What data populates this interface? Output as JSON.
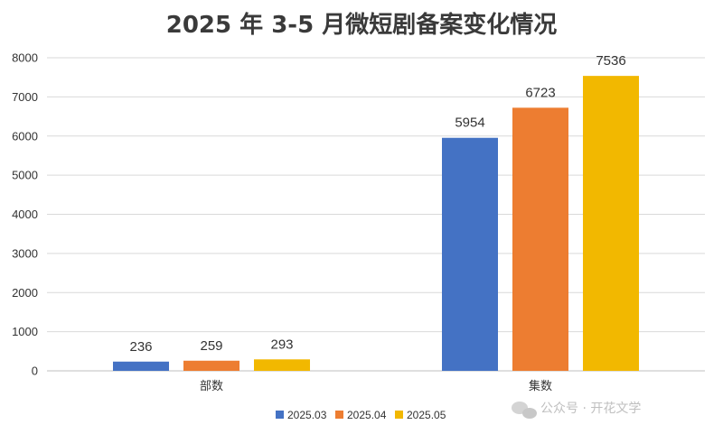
{
  "chart_data": {
    "type": "bar",
    "title": "2025 年 3-5 月微短剧备案变化情况",
    "categories": [
      "部数",
      "集数"
    ],
    "series": [
      {
        "name": "2025.03",
        "color": "#4472C4",
        "values": [
          236,
          5954
        ]
      },
      {
        "name": "2025.04",
        "color": "#ED7D31",
        "values": [
          259,
          6723
        ]
      },
      {
        "name": "2025.05",
        "color": "#F2B800",
        "values": [
          293,
          7536
        ]
      }
    ],
    "ylim": [
      0,
      8000
    ],
    "yticks": [
      0,
      1000,
      2000,
      3000,
      4000,
      5000,
      6000,
      7000,
      8000
    ],
    "grid": true,
    "legend": "bottom"
  },
  "watermark": "公众号 · 开花文学"
}
